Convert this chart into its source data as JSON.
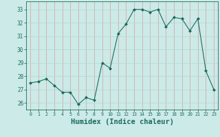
{
  "x": [
    0,
    1,
    2,
    3,
    4,
    5,
    6,
    7,
    8,
    9,
    10,
    11,
    12,
    13,
    14,
    15,
    16,
    17,
    18,
    19,
    20,
    21,
    22,
    23
  ],
  "y": [
    27.5,
    27.6,
    27.8,
    27.3,
    26.8,
    26.8,
    25.9,
    26.4,
    26.2,
    29.0,
    28.6,
    31.2,
    31.9,
    33.0,
    33.0,
    32.8,
    33.0,
    31.7,
    32.4,
    32.3,
    31.4,
    32.3,
    28.4,
    27.0
  ],
  "line_color": "#1a6b5e",
  "marker": "D",
  "marker_size": 2.0,
  "bg_color": "#cceae7",
  "grid_color": "#b0d8d4",
  "tick_color": "#1a6b5e",
  "xlabel": "Humidex (Indice chaleur)",
  "xlabel_fontsize": 7.5,
  "ylim": [
    25.5,
    33.6
  ],
  "yticks": [
    26,
    27,
    28,
    29,
    30,
    31,
    32,
    33
  ],
  "xticks": [
    0,
    1,
    2,
    3,
    4,
    5,
    6,
    7,
    8,
    9,
    10,
    11,
    12,
    13,
    14,
    15,
    16,
    17,
    18,
    19,
    20,
    21,
    22,
    23
  ]
}
